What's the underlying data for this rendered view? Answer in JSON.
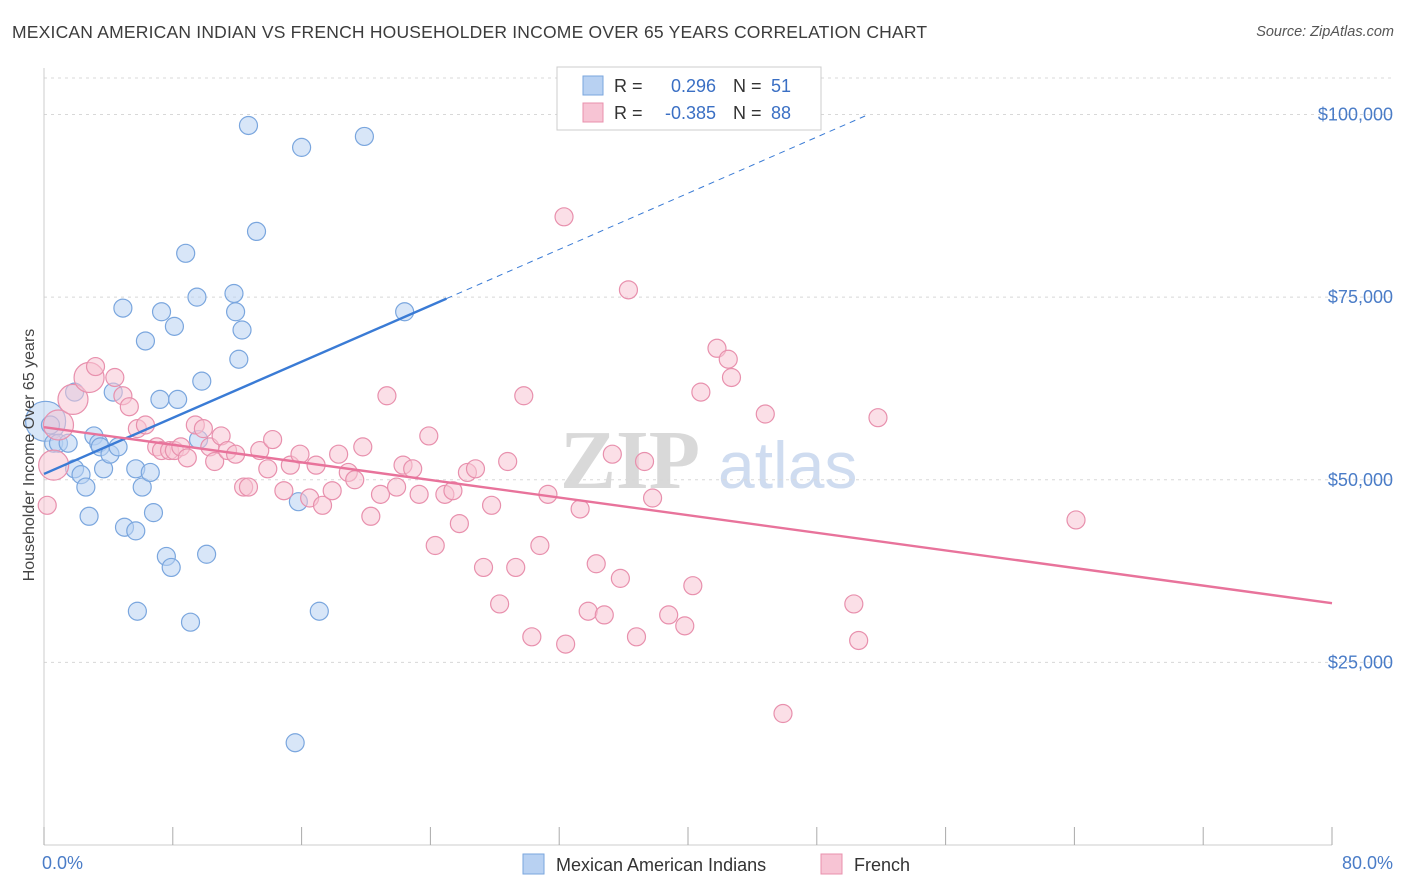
{
  "title": "MEXICAN AMERICAN INDIAN VS FRENCH HOUSEHOLDER INCOME OVER 65 YEARS CORRELATION CHART",
  "source": "Source: ZipAtlas.com",
  "watermark": {
    "zip": "ZIP",
    "atlas": "atlas"
  },
  "colors": {
    "blue_fill": "#b8d1f2",
    "blue_stroke": "#7aa6de",
    "blue_line": "#3a7bd5",
    "pink_fill": "#f7c4d4",
    "pink_stroke": "#e890ad",
    "pink_line": "#e8739b",
    "grid": "#d8d8d8",
    "tick_label": "#4a7cc7"
  },
  "stats_box": {
    "rows": [
      {
        "r_label": "R =",
        "r_value": "0.296",
        "n_label": "N =",
        "n_value": "51",
        "color": "blue"
      },
      {
        "r_label": "R =",
        "r_value": "-0.385",
        "n_label": "N =",
        "n_value": "88",
        "color": "pink"
      }
    ]
  },
  "chart_data": {
    "type": "scatter",
    "title": "MEXICAN AMERICAN INDIAN VS FRENCH HOUSEHOLDER INCOME OVER 65 YEARS CORRELATION CHART",
    "xlabel": "",
    "ylabel": "Householder Income Over 65 years",
    "xlim": [
      0,
      80
    ],
    "ylim": [
      0,
      105000
    ],
    "x_tick_labels": [
      "0.0%",
      "80.0%"
    ],
    "y_ticks": [
      25000,
      50000,
      75000,
      100000
    ],
    "y_tick_labels": [
      "$25,000",
      "$50,000",
      "$75,000",
      "$100,000"
    ],
    "grid": true,
    "legend_position": "bottom-center",
    "series": [
      {
        "name": "Mexican American Indians",
        "color": "blue",
        "points": [
          [
            0.1,
            58000,
            3
          ],
          [
            0.4,
            57500,
            1
          ],
          [
            0.6,
            55000,
            1
          ],
          [
            0.9,
            55000,
            1
          ],
          [
            1.5,
            55000,
            1
          ],
          [
            1.9,
            62000,
            1
          ],
          [
            1.9,
            51500,
            1
          ],
          [
            2.3,
            50700,
            1
          ],
          [
            2.6,
            49000,
            1
          ],
          [
            2.8,
            45000,
            1
          ],
          [
            3.1,
            56000,
            1
          ],
          [
            3.4,
            55000,
            1
          ],
          [
            3.5,
            54500,
            1
          ],
          [
            3.7,
            51500,
            1
          ],
          [
            4.1,
            53500,
            1
          ],
          [
            4.3,
            62000,
            1
          ],
          [
            4.6,
            54500,
            1
          ],
          [
            4.9,
            73500,
            1
          ],
          [
            5.0,
            43500,
            1
          ],
          [
            5.7,
            51500,
            1
          ],
          [
            5.7,
            43000,
            1
          ],
          [
            5.8,
            32000,
            1
          ],
          [
            6.1,
            49000,
            1
          ],
          [
            6.3,
            69000,
            1
          ],
          [
            6.6,
            51000,
            1
          ],
          [
            6.8,
            45500,
            1
          ],
          [
            7.2,
            61000,
            1
          ],
          [
            7.3,
            73000,
            1
          ],
          [
            7.6,
            39500,
            1
          ],
          [
            7.9,
            38000,
            1
          ],
          [
            8.1,
            71000,
            1
          ],
          [
            8.3,
            61000,
            1
          ],
          [
            8.8,
            81000,
            1
          ],
          [
            9.1,
            30500,
            1
          ],
          [
            9.5,
            75000,
            1
          ],
          [
            9.6,
            55500,
            1
          ],
          [
            9.8,
            63500,
            1
          ],
          [
            10.1,
            39800,
            1
          ],
          [
            11.8,
            75500,
            1
          ],
          [
            11.9,
            73000,
            1
          ],
          [
            12.1,
            66500,
            1
          ],
          [
            12.3,
            70500,
            1
          ],
          [
            12.7,
            98500,
            1
          ],
          [
            13.2,
            84000,
            1
          ],
          [
            15.6,
            14000,
            1
          ],
          [
            15.8,
            47000,
            1
          ],
          [
            16.0,
            95500,
            1
          ],
          [
            17.1,
            32000,
            1
          ],
          [
            19.9,
            97000,
            1
          ],
          [
            22.4,
            73000,
            1
          ]
        ]
      },
      {
        "name": "French",
        "color": "pink",
        "points": [
          [
            0.2,
            46500,
            1
          ],
          [
            0.6,
            52000,
            2
          ],
          [
            0.9,
            57500,
            2
          ],
          [
            1.8,
            61000,
            2
          ],
          [
            2.8,
            64000,
            2
          ],
          [
            3.2,
            65500,
            1
          ],
          [
            4.4,
            64000,
            1
          ],
          [
            4.9,
            61500,
            1
          ],
          [
            5.3,
            60000,
            1
          ],
          [
            5.8,
            57000,
            1
          ],
          [
            6.3,
            57500,
            1
          ],
          [
            7.0,
            54500,
            1
          ],
          [
            7.3,
            54000,
            1
          ],
          [
            7.8,
            54000,
            1
          ],
          [
            8.1,
            54000,
            1
          ],
          [
            8.5,
            54500,
            1
          ],
          [
            8.9,
            53000,
            1
          ],
          [
            9.4,
            57500,
            1
          ],
          [
            9.9,
            57000,
            1
          ],
          [
            10.3,
            54500,
            1
          ],
          [
            10.6,
            52500,
            1
          ],
          [
            11.0,
            56000,
            1
          ],
          [
            11.4,
            54000,
            1
          ],
          [
            11.9,
            53500,
            1
          ],
          [
            12.4,
            49000,
            1
          ],
          [
            12.7,
            49000,
            1
          ],
          [
            13.4,
            54000,
            1
          ],
          [
            13.9,
            51500,
            1
          ],
          [
            14.2,
            55500,
            1
          ],
          [
            14.9,
            48500,
            1
          ],
          [
            15.3,
            52000,
            1
          ],
          [
            15.9,
            53500,
            1
          ],
          [
            16.5,
            47500,
            1
          ],
          [
            16.9,
            52000,
            1
          ],
          [
            17.3,
            46500,
            1
          ],
          [
            17.9,
            48500,
            1
          ],
          [
            18.3,
            53500,
            1
          ],
          [
            18.9,
            51000,
            1
          ],
          [
            19.3,
            50000,
            1
          ],
          [
            19.8,
            54500,
            1
          ],
          [
            20.3,
            45000,
            1
          ],
          [
            20.9,
            48000,
            1
          ],
          [
            21.3,
            61500,
            1
          ],
          [
            21.9,
            49000,
            1
          ],
          [
            22.3,
            52000,
            1
          ],
          [
            22.9,
            51500,
            1
          ],
          [
            23.3,
            48000,
            1
          ],
          [
            23.9,
            56000,
            1
          ],
          [
            24.3,
            41000,
            1
          ],
          [
            24.9,
            48000,
            1
          ],
          [
            25.4,
            48500,
            1
          ],
          [
            25.8,
            44000,
            1
          ],
          [
            26.3,
            51000,
            1
          ],
          [
            26.8,
            51500,
            1
          ],
          [
            27.3,
            38000,
            1
          ],
          [
            27.8,
            46500,
            1
          ],
          [
            28.3,
            33000,
            1
          ],
          [
            28.8,
            52500,
            1
          ],
          [
            29.3,
            38000,
            1
          ],
          [
            29.8,
            61500,
            1
          ],
          [
            30.3,
            28500,
            1
          ],
          [
            30.8,
            41000,
            1
          ],
          [
            31.3,
            48000,
            1
          ],
          [
            32.3,
            86000,
            1
          ],
          [
            32.4,
            27500,
            1
          ],
          [
            33.3,
            46000,
            1
          ],
          [
            33.8,
            32000,
            1
          ],
          [
            34.3,
            38500,
            1
          ],
          [
            34.8,
            31500,
            1
          ],
          [
            35.3,
            53500,
            1
          ],
          [
            35.8,
            36500,
            1
          ],
          [
            36.3,
            76000,
            1
          ],
          [
            36.8,
            28500,
            1
          ],
          [
            37.3,
            52500,
            1
          ],
          [
            37.8,
            47500,
            1
          ],
          [
            38.8,
            31500,
            1
          ],
          [
            39.8,
            30000,
            1
          ],
          [
            40.3,
            35500,
            1
          ],
          [
            40.8,
            62000,
            1
          ],
          [
            41.8,
            68000,
            1
          ],
          [
            42.5,
            66500,
            1
          ],
          [
            42.7,
            64000,
            1
          ],
          [
            44.8,
            59000,
            1
          ],
          [
            50.3,
            33000,
            1
          ],
          [
            50.6,
            28000,
            1
          ],
          [
            51.8,
            58500,
            1
          ],
          [
            45.9,
            18000,
            1
          ],
          [
            64.1,
            44500,
            1
          ]
        ]
      }
    ],
    "trendlines": [
      {
        "series": "Mexican American Indians",
        "x": [
          0,
          25
        ],
        "y": [
          50800,
          74800
        ],
        "dashed_extension_x": [
          25,
          51
        ],
        "dashed_extension_y": [
          74800,
          99800
        ]
      },
      {
        "series": "French",
        "x": [
          0,
          80
        ],
        "y": [
          57200,
          33100
        ]
      }
    ]
  },
  "legend": [
    {
      "label": "Mexican American Indians",
      "color": "blue"
    },
    {
      "label": "French",
      "color": "pink"
    }
  ]
}
